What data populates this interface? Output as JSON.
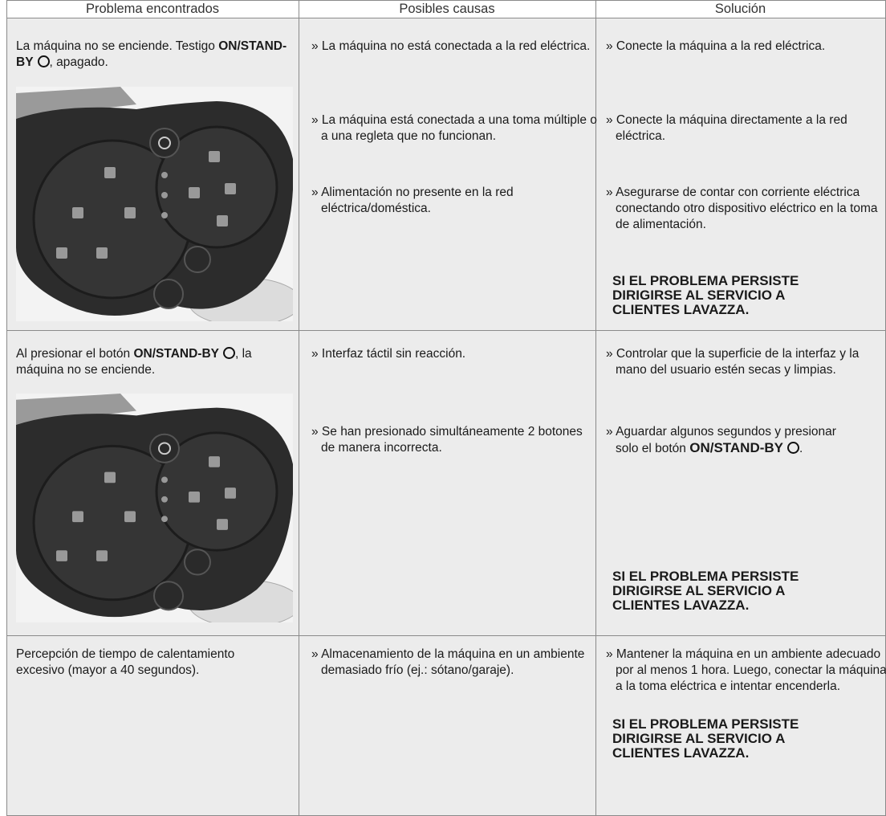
{
  "header": {
    "columns": [
      "Problema encontrados",
      "Posibles causas",
      "Solución"
    ]
  },
  "rows": [
    {
      "problem": {
        "text": "La máquina no se enciende. Testigo ",
        "button": "ON/STAND-BY",
        "end": ", apagado."
      },
      "causes": [
        "» La máquina no está conectada a la red eléctrica.",
        "» La máquina está conectada a una toma múltiple o a una regleta que no funcionan.",
        "» Alimentación no presente en la red eléctrica/doméstica."
      ],
      "solutions": [
        "» Conecte la máquina a la red eléctrica.",
        "» Conecte la máquina directamente a la red eléctrica.",
        "» Asegurarse de contar con corriente eléctrica conectando otro dispositivo eléctrico en la toma de alimentación."
      ],
      "notice": "SI EL PROBLEMA PERSISTE DIRIGIRSE AL SERVICIO A CLIENTES LAVAZZA."
    },
    {
      "problem": {
        "text": "Al presionar el botón ",
        "button": "ON/STAND-BY",
        "end": ", la máquina no se enciende."
      },
      "causes": [
        "» Interfaz táctil sin reacción.",
        "» Se han presionado simultáneamente 2 botones de manera incorrecta."
      ],
      "solutions": [
        "» Controlar que la superficie de la interfaz y la mano del usuario estén secas y limpias.",
        {
          "text": "» Aguardar algunos segundos y presionar solo el botón ",
          "button": "ON/STAND-BY",
          "end": "."
        }
      ],
      "notice": "SI EL PROBLEMA PERSISTE DIRIGIRSE AL SERVICIO A CLIENTES LAVAZZA."
    },
    {
      "problem": {
        "text": "Percepción de tiempo de calentamiento excesivo (mayor a 40 segundos)."
      },
      "causes": [
        "» Almacenamiento de la máquina en un ambiente demasiado frío (ej.: sótano/garaje)."
      ],
      "solutions": [
        "» Mantener la máquina en un ambiente adecuado por al menos 1 hora. Luego, conectar la máquina a la toma eléctrica e intentar encenderla."
      ],
      "notice": "SI EL PROBLEMA PERSISTE DIRIGIRSE AL SERVICIO A CLIENTES LAVAZZA."
    }
  ]
}
